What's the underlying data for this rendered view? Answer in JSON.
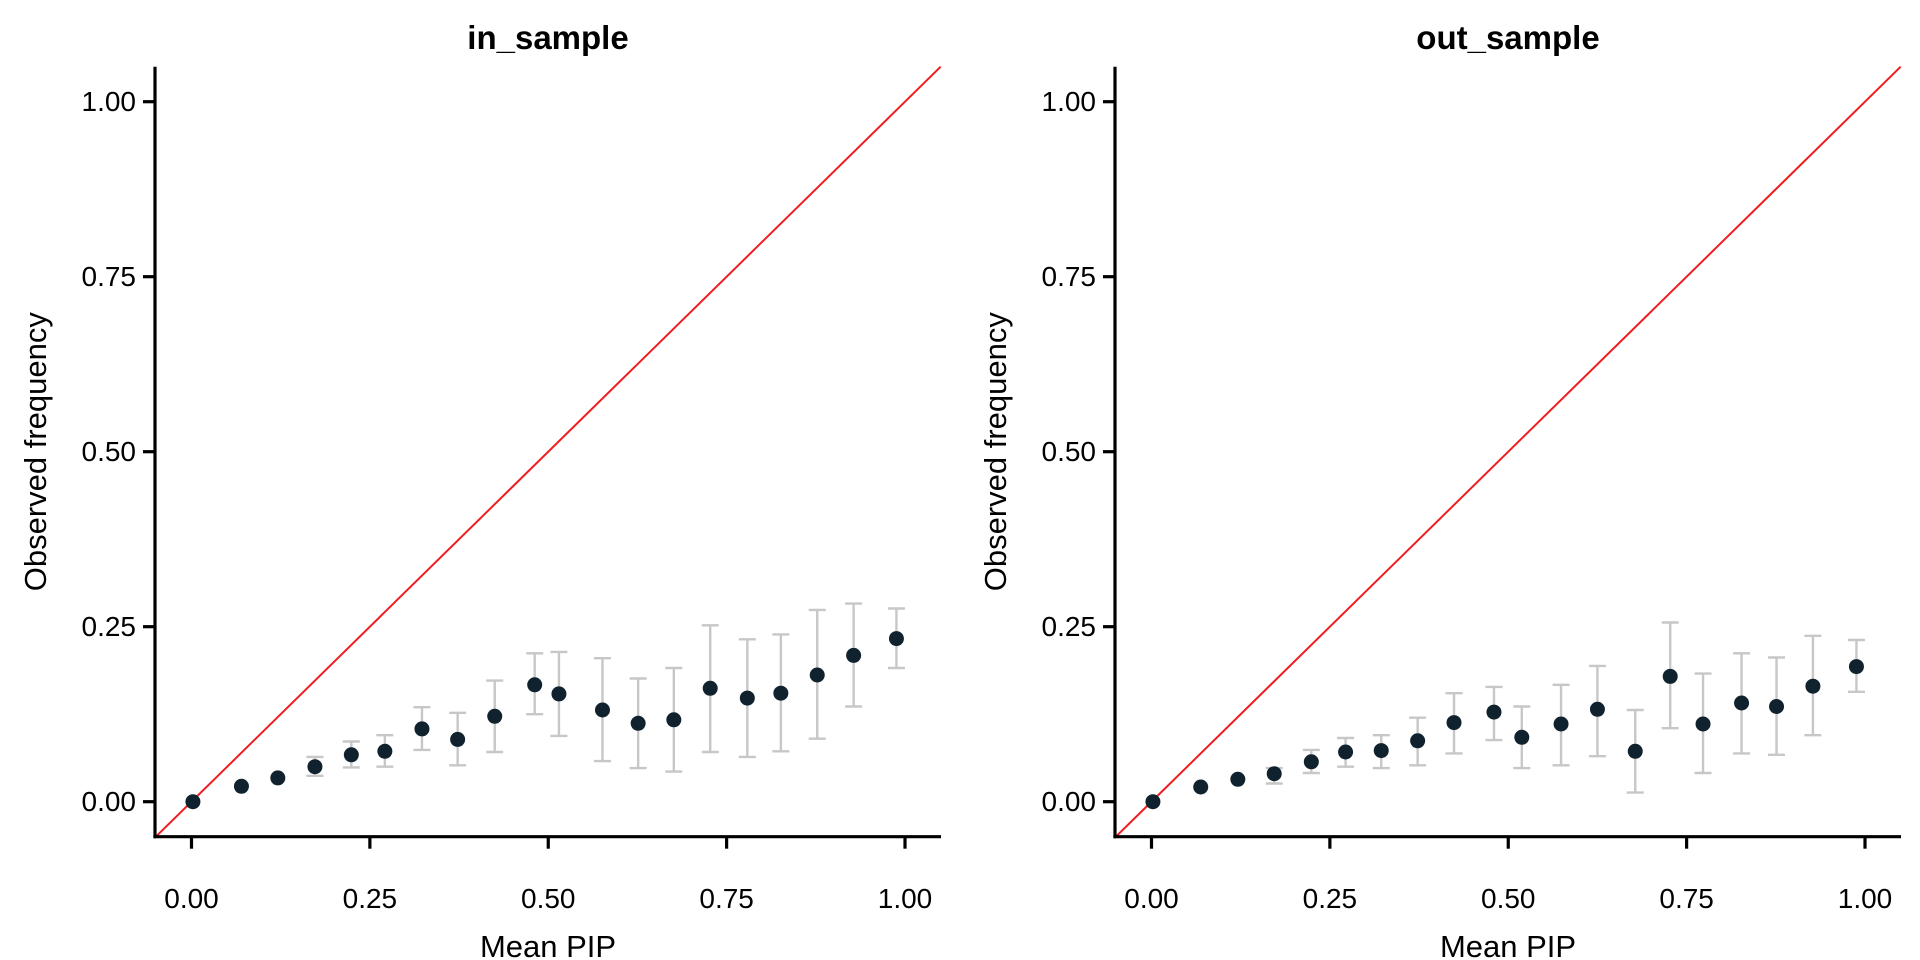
{
  "figure": {
    "background": "#ffffff",
    "description": "Two-panel PIP calibration plot: binned mean posterior inclusion probability vs observed frequency with error bars and y=x reference line"
  },
  "chart_data": [
    {
      "type": "scatter",
      "title": "in_sample",
      "xlabel": "Mean PIP",
      "ylabel": "Observed frequency",
      "xlim": [
        -0.05,
        1.05
      ],
      "ylim": [
        -0.05,
        1.05
      ],
      "grid": false,
      "legend": "none",
      "xticks": {
        "values": [
          0,
          0.25,
          0.5,
          0.75,
          1
        ],
        "labels": [
          "0.00",
          "0.25",
          "0.50",
          "0.75",
          "1.00"
        ]
      },
      "yticks": {
        "values": [
          0,
          0.25,
          0.5,
          0.75,
          1
        ],
        "labels": [
          "0.00",
          "0.25",
          "0.50",
          "0.75",
          "1.00"
        ]
      },
      "reference_line": {
        "kind": "abline",
        "slope": 1,
        "intercept": 0
      },
      "colors": {
        "point": "#10222e",
        "errorbar": "#c7c7c7",
        "reference_line": "#f01d20",
        "axis": "#000000",
        "text": "#000000"
      },
      "series": [
        {
          "name": "binned calibration points",
          "points": [
            {
              "x": 0.002,
              "y": 0.0,
              "ymin": null,
              "ymax": null
            },
            {
              "x": 0.07,
              "y": 0.022,
              "ymin": null,
              "ymax": null
            },
            {
              "x": 0.121,
              "y": 0.034,
              "ymin": null,
              "ymax": null
            },
            {
              "x": 0.173,
              "y": 0.05,
              "ymin": 0.037,
              "ymax": 0.064
            },
            {
              "x": 0.224,
              "y": 0.067,
              "ymin": 0.049,
              "ymax": 0.086
            },
            {
              "x": 0.271,
              "y": 0.072,
              "ymin": 0.05,
              "ymax": 0.095
            },
            {
              "x": 0.323,
              "y": 0.104,
              "ymin": 0.074,
              "ymax": 0.135
            },
            {
              "x": 0.373,
              "y": 0.089,
              "ymin": 0.052,
              "ymax": 0.127
            },
            {
              "x": 0.425,
              "y": 0.122,
              "ymin": 0.071,
              "ymax": 0.173
            },
            {
              "x": 0.481,
              "y": 0.167,
              "ymin": 0.125,
              "ymax": 0.212
            },
            {
              "x": 0.515,
              "y": 0.154,
              "ymin": 0.094,
              "ymax": 0.214
            },
            {
              "x": 0.576,
              "y": 0.131,
              "ymin": 0.058,
              "ymax": 0.205
            },
            {
              "x": 0.626,
              "y": 0.112,
              "ymin": 0.048,
              "ymax": 0.176
            },
            {
              "x": 0.676,
              "y": 0.117,
              "ymin": 0.043,
              "ymax": 0.191
            },
            {
              "x": 0.727,
              "y": 0.162,
              "ymin": 0.071,
              "ymax": 0.252
            },
            {
              "x": 0.779,
              "y": 0.148,
              "ymin": 0.064,
              "ymax": 0.232
            },
            {
              "x": 0.826,
              "y": 0.155,
              "ymin": 0.072,
              "ymax": 0.239
            },
            {
              "x": 0.877,
              "y": 0.181,
              "ymin": 0.09,
              "ymax": 0.274
            },
            {
              "x": 0.928,
              "y": 0.209,
              "ymin": 0.136,
              "ymax": 0.283
            },
            {
              "x": 0.988,
              "y": 0.233,
              "ymin": 0.191,
              "ymax": 0.276
            }
          ]
        }
      ]
    },
    {
      "type": "scatter",
      "title": "out_sample",
      "xlabel": "Mean PIP",
      "ylabel": "Observed frequency",
      "xlim": [
        -0.05,
        1.05
      ],
      "ylim": [
        -0.05,
        1.05
      ],
      "grid": false,
      "legend": "none",
      "xticks": {
        "values": [
          0,
          0.25,
          0.5,
          0.75,
          1
        ],
        "labels": [
          "0.00",
          "0.25",
          "0.50",
          "0.75",
          "1.00"
        ]
      },
      "yticks": {
        "values": [
          0,
          0.25,
          0.5,
          0.75,
          1
        ],
        "labels": [
          "0.00",
          "0.25",
          "0.50",
          "0.75",
          "1.00"
        ]
      },
      "reference_line": {
        "kind": "abline",
        "slope": 1,
        "intercept": 0
      },
      "colors": {
        "point": "#10222e",
        "errorbar": "#c7c7c7",
        "reference_line": "#f01d20",
        "axis": "#000000",
        "text": "#000000"
      },
      "series": [
        {
          "name": "binned calibration points",
          "points": [
            {
              "x": 0.002,
              "y": 0.0,
              "ymin": null,
              "ymax": null
            },
            {
              "x": 0.069,
              "y": 0.021,
              "ymin": null,
              "ymax": null
            },
            {
              "x": 0.121,
              "y": 0.032,
              "ymin": null,
              "ymax": null
            },
            {
              "x": 0.172,
              "y": 0.04,
              "ymin": 0.026,
              "ymax": 0.048
            },
            {
              "x": 0.224,
              "y": 0.057,
              "ymin": 0.041,
              "ymax": 0.074
            },
            {
              "x": 0.272,
              "y": 0.071,
              "ymin": 0.05,
              "ymax": 0.091
            },
            {
              "x": 0.322,
              "y": 0.073,
              "ymin": 0.048,
              "ymax": 0.095
            },
            {
              "x": 0.373,
              "y": 0.087,
              "ymin": 0.052,
              "ymax": 0.12
            },
            {
              "x": 0.424,
              "y": 0.113,
              "ymin": 0.069,
              "ymax": 0.155
            },
            {
              "x": 0.48,
              "y": 0.128,
              "ymin": 0.088,
              "ymax": 0.164
            },
            {
              "x": 0.519,
              "y": 0.092,
              "ymin": 0.048,
              "ymax": 0.136
            },
            {
              "x": 0.574,
              "y": 0.111,
              "ymin": 0.052,
              "ymax": 0.167
            },
            {
              "x": 0.625,
              "y": 0.132,
              "ymin": 0.065,
              "ymax": 0.194
            },
            {
              "x": 0.678,
              "y": 0.072,
              "ymin": 0.013,
              "ymax": 0.131
            },
            {
              "x": 0.727,
              "y": 0.179,
              "ymin": 0.105,
              "ymax": 0.256
            },
            {
              "x": 0.773,
              "y": 0.111,
              "ymin": 0.041,
              "ymax": 0.183
            },
            {
              "x": 0.827,
              "y": 0.141,
              "ymin": 0.069,
              "ymax": 0.212
            },
            {
              "x": 0.876,
              "y": 0.136,
              "ymin": 0.067,
              "ymax": 0.206
            },
            {
              "x": 0.927,
              "y": 0.165,
              "ymin": 0.095,
              "ymax": 0.237
            },
            {
              "x": 0.988,
              "y": 0.193,
              "ymin": 0.157,
              "ymax": 0.231
            }
          ]
        }
      ]
    }
  ]
}
